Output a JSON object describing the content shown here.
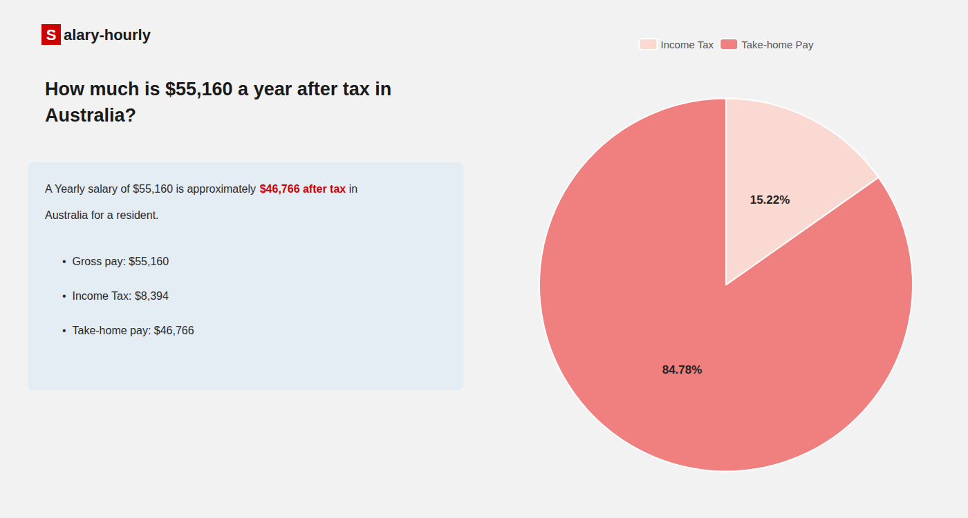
{
  "chart_data": {
    "type": "pie",
    "title": "How much is $55,160 a year after tax in\nAustralia?",
    "annotations": [
      [
        {
          "text": "S",
          "color": "#cc0000"
        },
        {
          "text": "alary-hourly"
        }
      ],
      [
        {
          "text": "A Yearly salary of $55,160 is approximately "
        },
        {
          "text": "$46,766 after tax",
          "color": "#cc0000"
        },
        {
          "text": " in"
        }
      ],
      [
        {
          "text": "Australia for a resident."
        }
      ],
      [
        {
          "text": "•"
        },
        {
          "text": "Gross pay: $55,160"
        }
      ],
      [
        {
          "text": "•"
        },
        {
          "text": "Income Tax: $8,394"
        }
      ],
      [
        {
          "text": "•"
        },
        {
          "text": "Take-home pay: $46,766"
        }
      ]
    ],
    "categories": [
      "Income Tax",
      "Take-home Pay"
    ],
    "values": [
      15.22,
      84.78
    ],
    "value_labels": [
      "15.22%",
      "84.78%"
    ],
    "colors": [
      "#f9d9d2",
      "#f08080"
    ],
    "data_labels": true,
    "legend": "top"
  }
}
